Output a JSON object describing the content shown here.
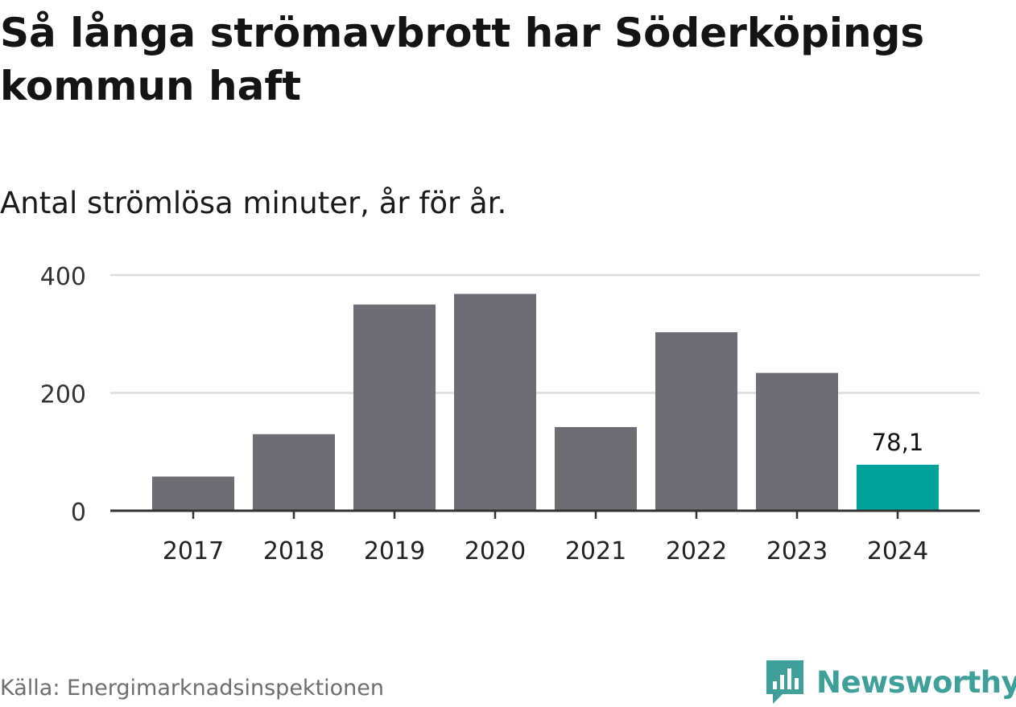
{
  "title": "Så långa strömavbrott har Söderköpings kommun haft",
  "subtitle": "Antal strömlösa minuter, år för år.",
  "source": "Källa: Energimarknadsinspektionen",
  "brand": {
    "name": "Newsworthy",
    "icon": "bar-chart-speech-bubble-icon",
    "color": "#3f9f99"
  },
  "colors": {
    "bar": "#6e6d74",
    "highlight": "#00a39a",
    "grid": "#dcdcdc",
    "axis": "#333333"
  },
  "chart_data": {
    "type": "bar",
    "categories": [
      "2017",
      "2018",
      "2019",
      "2020",
      "2021",
      "2022",
      "2023",
      "2024"
    ],
    "values": [
      58,
      130,
      350,
      368,
      142,
      303,
      234,
      78.1
    ],
    "highlight_index": 7,
    "highlight_label": "78,1",
    "yticks": [
      0,
      200,
      400
    ],
    "ylim": [
      0,
      400
    ],
    "grid": true
  }
}
